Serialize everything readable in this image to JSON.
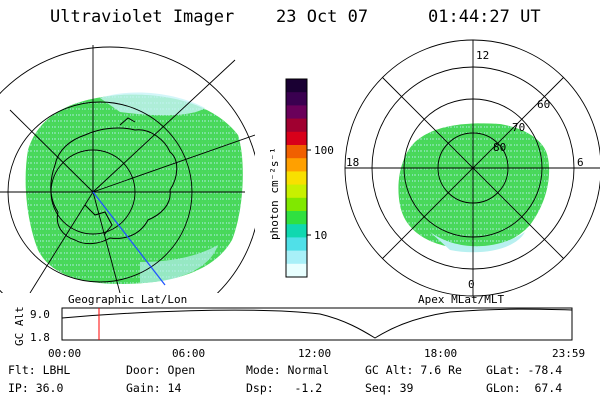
{
  "header": {
    "instrument": "Ultraviolet Imager",
    "date": "23 Oct 07",
    "time": "01:44:27 UT"
  },
  "left_map": {
    "label": "Geographic Lat/Lon"
  },
  "right_map": {
    "label": "Apex MLat/MLT",
    "lat_labels": [
      "80",
      "70",
      "60"
    ],
    "mlt_labels": {
      "top": "12",
      "bottom": "0",
      "left": "18",
      "right": "6"
    }
  },
  "colorbar": {
    "unit_label": "photon cm⁻²s⁻¹",
    "tick_labels": [
      "100",
      "10"
    ],
    "colors": [
      "#1a0033",
      "#3a0050",
      "#6a005a",
      "#a00030",
      "#d8001a",
      "#f06000",
      "#ffa000",
      "#f8e000",
      "#c8f000",
      "#80e800",
      "#30e040",
      "#10d8b0",
      "#50e0e8",
      "#a8f0f8",
      "#e8ffff"
    ]
  },
  "timeline": {
    "ylabel": "GC Alt",
    "ytick_top": "9.0",
    "ytick_bottom": "1.8",
    "x_ticks": [
      "00:00",
      "06:00",
      "12:00",
      "18:00",
      "23:59"
    ],
    "current_time_hours": 1.74,
    "colors": {
      "marker": "#ff0000"
    }
  },
  "metadata": {
    "filter": "Flt: LBHL",
    "ip": "IP: 36.0",
    "door": "Door: Open",
    "gain": "Gain: 14",
    "mode": "Mode: Normal",
    "dsp": "Dsp:   -1.2",
    "gc_alt": "GC Alt: 7.6 Re",
    "seq": "Seq: 39",
    "glat": "GLat: -78.4",
    "glon": "GLon:  67.4"
  }
}
